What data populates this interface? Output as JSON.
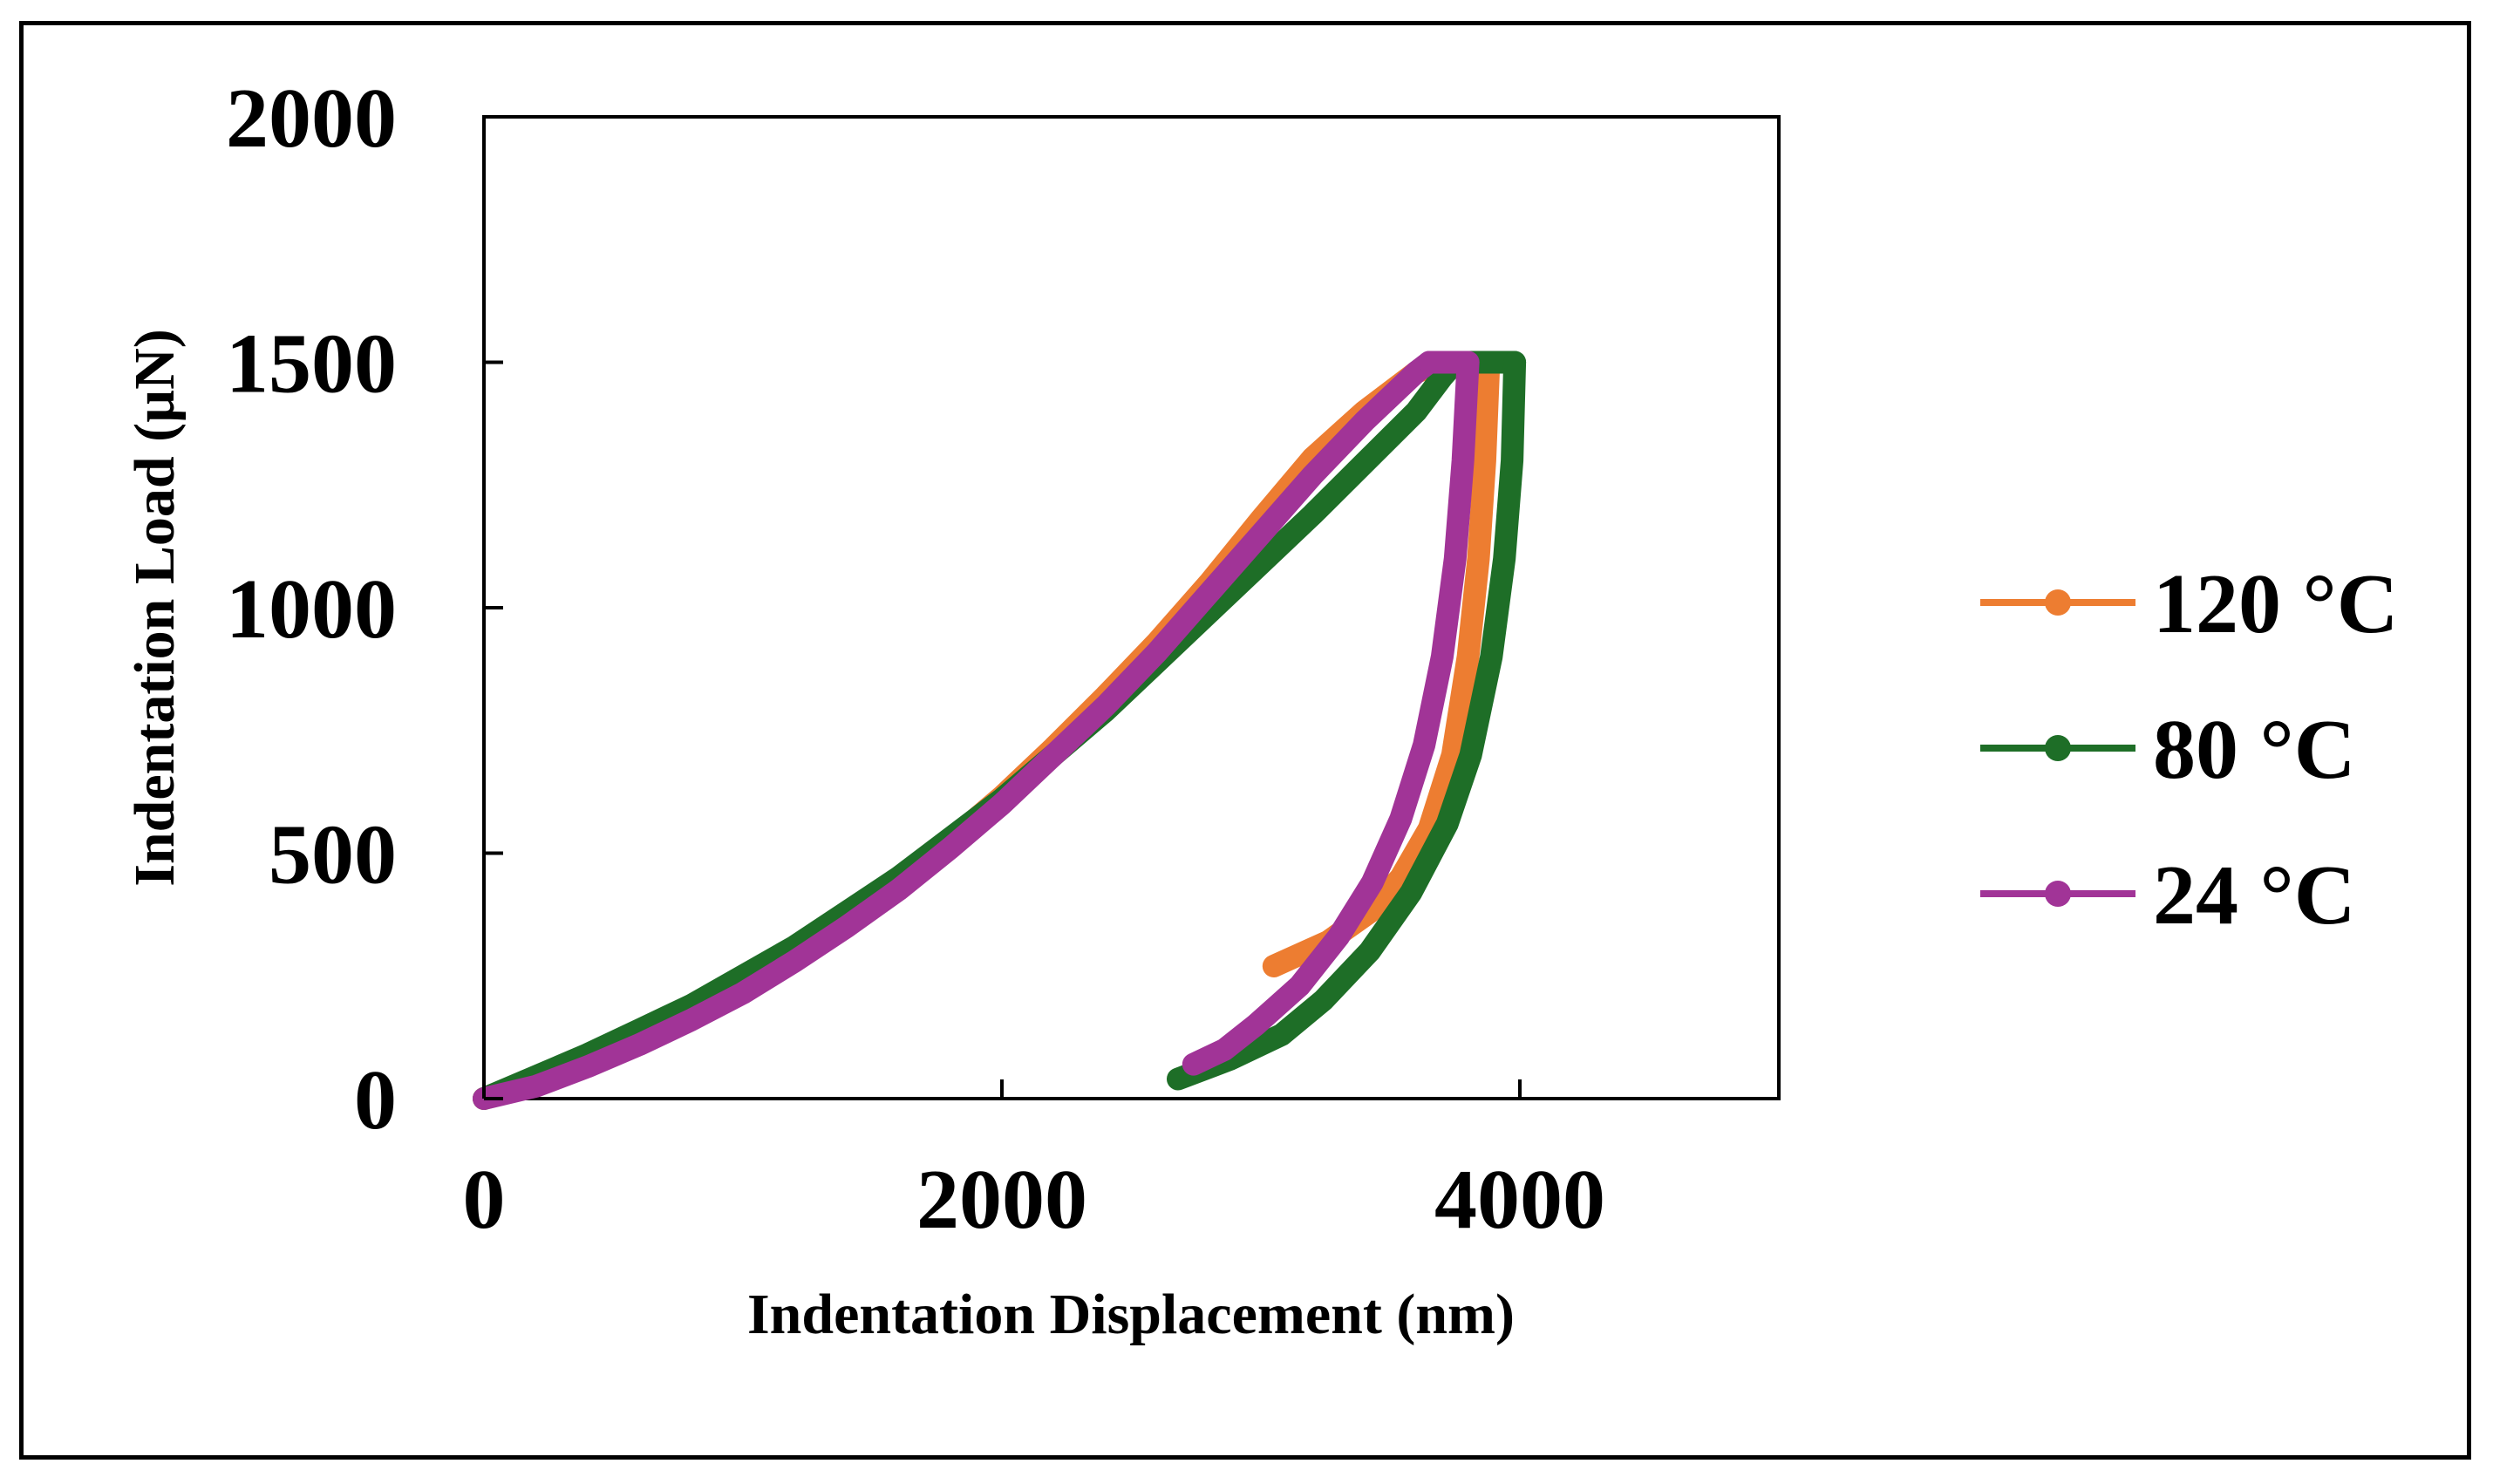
{
  "chart_data": {
    "type": "line",
    "title": "",
    "xlabel": "Indentation Displacement (nm)",
    "ylabel": "Indentation Load (µN)",
    "xlim": [
      0,
      5000
    ],
    "ylim": [
      0,
      2000
    ],
    "x_ticks": [
      0,
      2000,
      4000
    ],
    "y_ticks": [
      0,
      500,
      1000,
      1500,
      2000
    ],
    "grid": false,
    "legend_position": "right",
    "series": [
      {
        "name": "120 °C",
        "color": "#ED7D31",
        "loading": [
          [
            0,
            0
          ],
          [
            200,
            30
          ],
          [
            400,
            70
          ],
          [
            600,
            115
          ],
          [
            800,
            165
          ],
          [
            1000,
            225
          ],
          [
            1200,
            290
          ],
          [
            1400,
            360
          ],
          [
            1600,
            440
          ],
          [
            1800,
            525
          ],
          [
            2000,
            615
          ],
          [
            2200,
            715
          ],
          [
            2400,
            820
          ],
          [
            2600,
            930
          ],
          [
            2800,
            1050
          ],
          [
            3000,
            1180
          ],
          [
            3200,
            1305
          ],
          [
            3400,
            1400
          ],
          [
            3600,
            1480
          ],
          [
            3700,
            1500
          ]
        ],
        "hold": [
          [
            3700,
            1500
          ],
          [
            3880,
            1500
          ]
        ],
        "unloading": [
          [
            3880,
            1500
          ],
          [
            3865,
            1300
          ],
          [
            3840,
            1100
          ],
          [
            3800,
            900
          ],
          [
            3740,
            700
          ],
          [
            3650,
            550
          ],
          [
            3540,
            450
          ],
          [
            3420,
            380
          ],
          [
            3260,
            320
          ],
          [
            3050,
            270
          ]
        ]
      },
      {
        "name": "80 °C",
        "color": "#1E6E27",
        "loading": [
          [
            0,
            0
          ],
          [
            200,
            45
          ],
          [
            400,
            90
          ],
          [
            600,
            140
          ],
          [
            800,
            190
          ],
          [
            1000,
            250
          ],
          [
            1200,
            310
          ],
          [
            1400,
            380
          ],
          [
            1600,
            450
          ],
          [
            1800,
            530
          ],
          [
            2000,
            610
          ],
          [
            2200,
            700
          ],
          [
            2400,
            790
          ],
          [
            2600,
            890
          ],
          [
            2800,
            990
          ],
          [
            3000,
            1090
          ],
          [
            3200,
            1190
          ],
          [
            3400,
            1295
          ],
          [
            3600,
            1400
          ],
          [
            3700,
            1470
          ],
          [
            3750,
            1500
          ]
        ],
        "hold": [
          [
            3750,
            1500
          ],
          [
            3980,
            1500
          ]
        ],
        "unloading": [
          [
            3980,
            1500
          ],
          [
            3970,
            1300
          ],
          [
            3940,
            1100
          ],
          [
            3890,
            900
          ],
          [
            3810,
            700
          ],
          [
            3720,
            560
          ],
          [
            3580,
            420
          ],
          [
            3420,
            300
          ],
          [
            3240,
            200
          ],
          [
            3080,
            130
          ],
          [
            2880,
            80
          ],
          [
            2680,
            40
          ]
        ]
      },
      {
        "name": "24 °C",
        "color": "#A13497",
        "loading": [
          [
            0,
            0
          ],
          [
            200,
            25
          ],
          [
            400,
            65
          ],
          [
            600,
            110
          ],
          [
            800,
            160
          ],
          [
            1000,
            215
          ],
          [
            1200,
            280
          ],
          [
            1400,
            350
          ],
          [
            1600,
            425
          ],
          [
            1800,
            510
          ],
          [
            2000,
            600
          ],
          [
            2200,
            700
          ],
          [
            2400,
            800
          ],
          [
            2600,
            910
          ],
          [
            2800,
            1030
          ],
          [
            3000,
            1150
          ],
          [
            3200,
            1270
          ],
          [
            3400,
            1380
          ],
          [
            3600,
            1480
          ],
          [
            3650,
            1500
          ]
        ],
        "hold": [
          [
            3650,
            1500
          ],
          [
            3800,
            1500
          ]
        ],
        "unloading": [
          [
            3800,
            1500
          ],
          [
            3780,
            1300
          ],
          [
            3750,
            1100
          ],
          [
            3700,
            900
          ],
          [
            3630,
            720
          ],
          [
            3540,
            570
          ],
          [
            3430,
            440
          ],
          [
            3300,
            330
          ],
          [
            3150,
            230
          ],
          [
            2980,
            150
          ],
          [
            2860,
            100
          ],
          [
            2740,
            70
          ]
        ]
      }
    ]
  }
}
